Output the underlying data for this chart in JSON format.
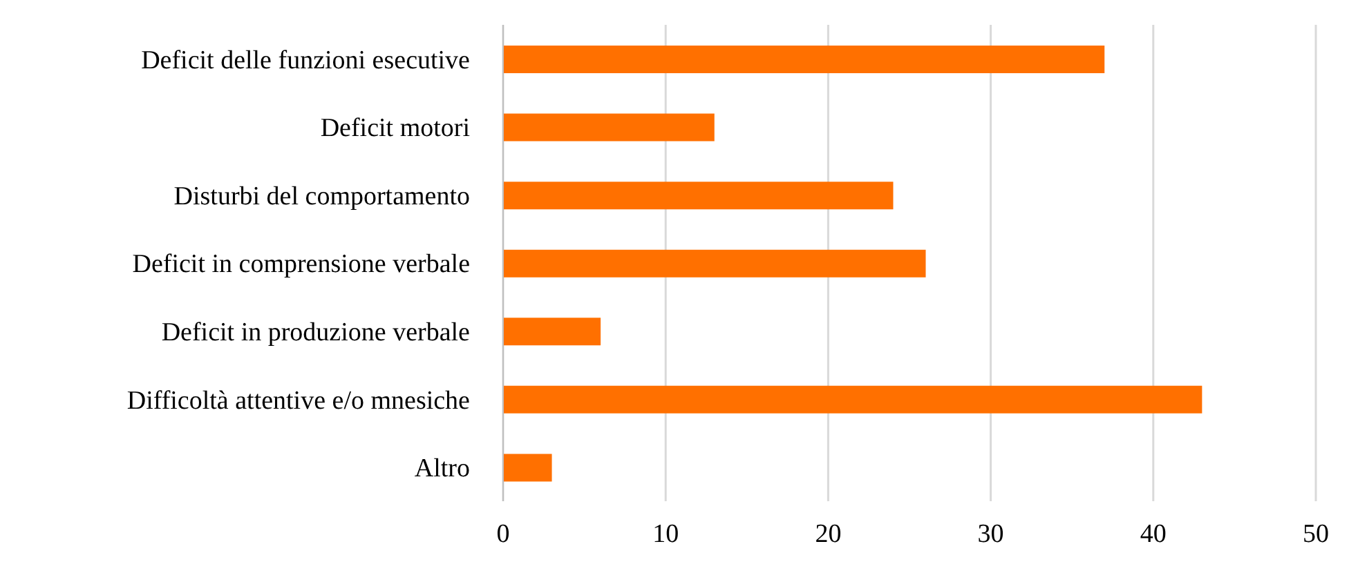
{
  "chart_data": {
    "type": "bar",
    "orientation": "horizontal",
    "categories": [
      "Deficit delle funzioni esecutive",
      "Deficit motori",
      "Disturbi del comportamento",
      "Deficit in comprensione verbale",
      "Deficit in produzione verbale",
      "Difficoltà attentive e/o mnesiche",
      "Altro"
    ],
    "values": [
      37,
      13,
      24,
      26,
      6,
      43,
      3
    ],
    "color": "#ff7000",
    "xlim": [
      0,
      50
    ],
    "xticks": [
      0,
      10,
      20,
      30,
      40,
      50
    ],
    "grid": "x"
  }
}
